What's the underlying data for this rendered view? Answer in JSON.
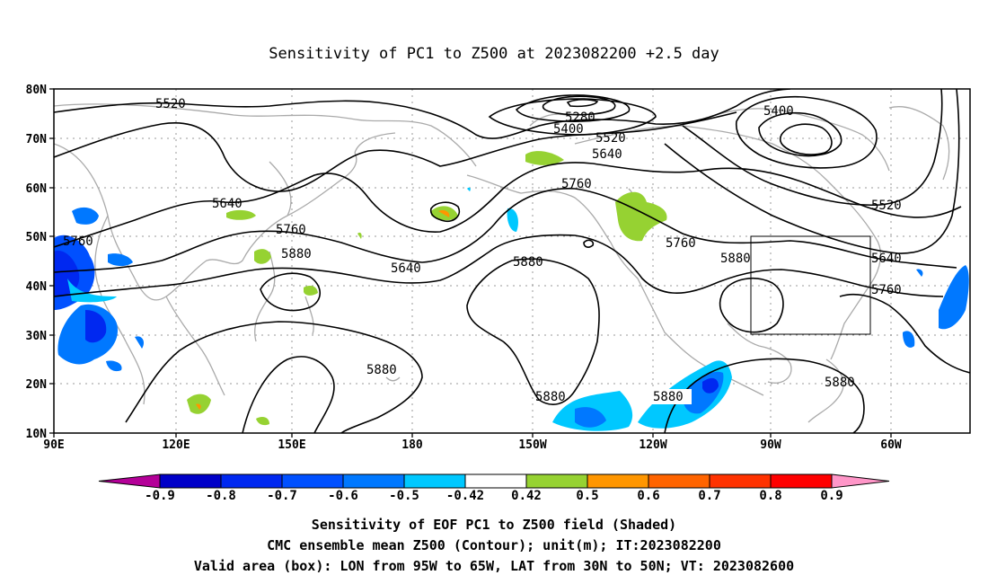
{
  "title": "Sensitivity of PC1 to Z500 at 2023082200 +2.5 day",
  "lat_labels": [
    "80N",
    "70N",
    "60N",
    "50N",
    "40N",
    "30N",
    "20N",
    "10N"
  ],
  "lon_labels": [
    "90E",
    "120E",
    "150E",
    "180",
    "150W",
    "120W",
    "90W",
    "60W"
  ],
  "contour_labels": [
    "5520",
    "5280",
    "5400",
    "5400",
    "5520",
    "5640",
    "5640",
    "5760",
    "5760",
    "5760",
    "5640",
    "5880",
    "5880",
    "5760",
    "5880",
    "5640",
    "5760",
    "5880",
    "5880",
    "5880",
    "5520"
  ],
  "colorbar": {
    "labels": [
      "-0.9",
      "-0.8",
      "-0.7",
      "-0.6",
      "-0.5",
      "-0.42",
      "0.42",
      "0.5",
      "0.6",
      "0.7",
      "0.8",
      "0.9"
    ],
    "colors": [
      "#b40098",
      "#0000c8",
      "#0028f0",
      "#0050ff",
      "#0078ff",
      "#00c8ff",
      "#ffffff",
      "#96d232",
      "#ff9600",
      "#ff6400",
      "#ff3200",
      "#ff0000",
      "#ff96c8"
    ]
  },
  "valid_box": {
    "lon_range": [
      "95W",
      "65W"
    ],
    "lat_range": [
      "30N",
      "50N"
    ]
  },
  "captions": [
    "Sensitivity of EOF PC1 to Z500 field (Shaded)",
    "CMC ensemble mean Z500 (Contour); unit(m); IT:2023082200",
    "Valid area (box): LON from 95W to 65W, LAT from 30N to 50N; VT: 2023082600"
  ]
}
